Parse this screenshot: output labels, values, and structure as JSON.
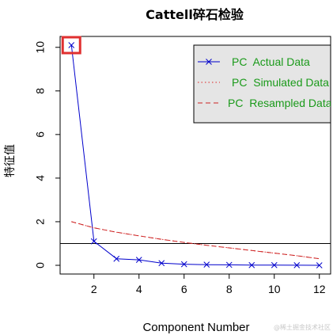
{
  "chart_data": {
    "type": "line",
    "title": "Cattell碎石检验",
    "xlabel": "Component Number",
    "ylabel": "特征值",
    "xlim": [
      0.5,
      12.5
    ],
    "ylim": [
      -0.4,
      10.5
    ],
    "x_ticks": [
      2,
      4,
      6,
      8,
      10,
      12
    ],
    "y_ticks": [
      0,
      2,
      4,
      6,
      8,
      10
    ],
    "reference_line_y": 1,
    "legend_position": "top-right",
    "grid": false,
    "series": [
      {
        "name": "PC  Actual Data",
        "style": "solid-line-x-markers",
        "color": "#0000cc",
        "x": [
          1,
          2,
          3,
          4,
          5,
          6,
          7,
          8,
          9,
          10,
          11,
          12
        ],
        "y": [
          10.1,
          1.1,
          0.3,
          0.25,
          0.1,
          0.05,
          0.03,
          0.02,
          0.01,
          0.01,
          0.005,
          0.0
        ]
      },
      {
        "name": "PC  Simulated Data",
        "style": "dotted",
        "color": "#dd2222",
        "x": [
          1,
          2,
          3,
          4,
          5,
          6,
          7,
          8,
          9,
          10,
          11,
          12
        ],
        "y": [
          2.0,
          1.72,
          1.52,
          1.35,
          1.19,
          1.05,
          0.92,
          0.8,
          0.68,
          0.56,
          0.44,
          0.3
        ]
      },
      {
        "name": "PC  Resampled Data",
        "style": "dashed",
        "color": "#cc2222",
        "x": [
          1,
          2,
          3,
          4,
          5,
          6,
          7,
          8,
          9,
          10,
          11,
          12
        ],
        "y": [
          2.0,
          1.72,
          1.52,
          1.35,
          1.19,
          1.05,
          0.92,
          0.8,
          0.68,
          0.56,
          0.44,
          0.3
        ]
      }
    ],
    "highlight": {
      "series": 0,
      "point_index": 0,
      "color": "#e03030"
    }
  },
  "watermark": "@稀土掘金技术社区"
}
